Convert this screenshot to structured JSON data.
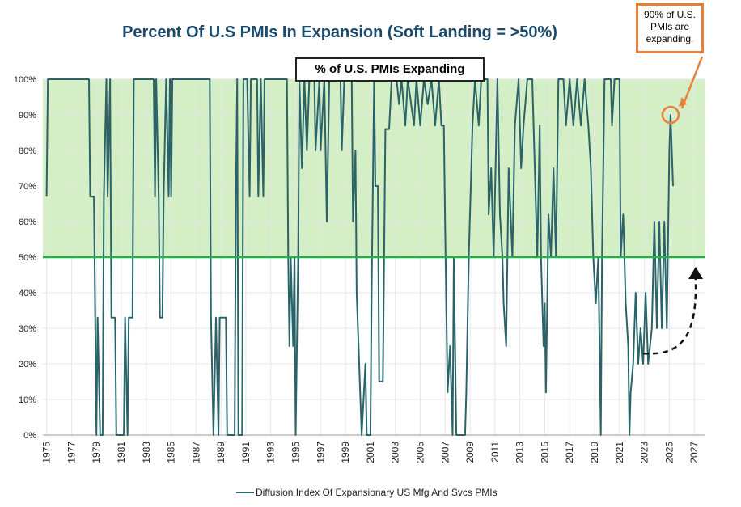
{
  "chart_data": {
    "type": "line",
    "title": "Percent Of U.S PMIs In Expansion (Soft Landing = >50%)",
    "annotations": [
      "% of U.S. PMIs Expanding",
      "90% of U.S. PMIs are expanding."
    ],
    "xlim": [
      1974.7,
      2027.9
    ],
    "xticks": [
      1975,
      1977,
      1979,
      1981,
      1983,
      1985,
      1987,
      1989,
      1991,
      1993,
      1995,
      1997,
      1999,
      2001,
      2003,
      2005,
      2007,
      2009,
      2011,
      2013,
      2015,
      2017,
      2019,
      2021,
      2023,
      2025,
      2027
    ],
    "ylim": [
      0,
      100
    ],
    "yticks": [
      {
        "value": 0,
        "label": "0%"
      },
      {
        "value": 10,
        "label": "10%"
      },
      {
        "value": 20,
        "label": "20%"
      },
      {
        "value": 30,
        "label": "30%"
      },
      {
        "value": 40,
        "label": "40%"
      },
      {
        "value": 50,
        "label": "50%"
      },
      {
        "value": 60,
        "label": "60%"
      },
      {
        "value": 70,
        "label": "70%"
      },
      {
        "value": 80,
        "label": "80%"
      },
      {
        "value": 90,
        "label": "90%"
      },
      {
        "value": 100,
        "label": "100%"
      }
    ],
    "grid": true,
    "threshold": {
      "value": 50,
      "color": "#22b04a",
      "band_color": "#d4efc6"
    },
    "x": [
      1975.0,
      1975.1,
      1978.4,
      1978.5,
      1978.8,
      1978.9,
      1979.0,
      1979.1,
      1979.3,
      1979.5,
      1979.6,
      1979.8,
      1979.9,
      1980.1,
      1980.2,
      1980.5,
      1980.6,
      1981.2,
      1981.3,
      1981.5,
      1981.6,
      1981.9,
      1982.0,
      1983.6,
      1983.7,
      1983.8,
      1984.0,
      1984.1,
      1984.3,
      1984.4,
      1984.6,
      1984.8,
      1984.9,
      1985.0,
      1985.1,
      1988.1,
      1988.2,
      1988.4,
      1988.6,
      1988.8,
      1988.9,
      1989.4,
      1989.5,
      1990.1,
      1990.2,
      1990.3,
      1990.4,
      1990.7,
      1990.8,
      1991.1,
      1991.3,
      1991.4,
      1991.9,
      1992.0,
      1992.2,
      1992.4,
      1992.5,
      1994.3,
      1994.4,
      1994.5,
      1994.6,
      1994.8,
      1994.9,
      1995.0,
      1995.2,
      1995.3,
      1995.5,
      1995.7,
      1995.9,
      1996.1,
      1996.5,
      1996.6,
      1996.9,
      1997.0,
      1997.3,
      1997.5,
      1997.7,
      1998.6,
      1998.7,
      1998.9,
      1999.5,
      1999.6,
      1999.8,
      1999.9,
      2000.1,
      2000.3,
      2000.6,
      2000.7,
      2001.0,
      2001.1,
      2001.3,
      2001.4,
      2001.6,
      2001.7,
      2002.0,
      2002.2,
      2002.5,
      2002.7,
      2003.1,
      2003.3,
      2003.5,
      2003.8,
      2004.0,
      2004.5,
      2004.7,
      2005.0,
      2005.3,
      2005.6,
      2005.9,
      2006.2,
      2006.5,
      2006.7,
      2006.9,
      2007.0,
      2007.2,
      2007.4,
      2007.6,
      2007.7,
      2007.9,
      2008.6,
      2008.7,
      2008.9,
      2009.2,
      2009.4,
      2009.7,
      2009.9,
      2010.4,
      2010.5,
      2010.7,
      2010.9,
      2011.2,
      2011.4,
      2011.6,
      2011.7,
      2011.9,
      2012.1,
      2012.4,
      2012.6,
      2012.9,
      2013.1,
      2013.3,
      2013.6,
      2014.0,
      2014.2,
      2014.4,
      2014.6,
      2014.7,
      2014.9,
      2015.0,
      2015.1,
      2015.3,
      2015.5,
      2015.7,
      2015.9,
      2016.1,
      2016.5,
      2016.7,
      2017.0,
      2017.3,
      2017.6,
      2017.9,
      2018.2,
      2018.5,
      2018.7,
      2018.9,
      2019.1,
      2019.3,
      2019.5,
      2019.6,
      2019.8,
      2020.3,
      2020.4,
      2020.6,
      2021.0,
      2021.1,
      2021.3,
      2021.5,
      2021.7,
      2021.8,
      2021.9,
      2022.1,
      2022.3,
      2022.5,
      2022.7,
      2022.9,
      2023.1,
      2023.3,
      2023.6,
      2023.8,
      2024.0,
      2024.2,
      2024.4,
      2024.6,
      2024.8,
      2025.0,
      2025.1,
      2025.3
    ],
    "series": [
      {
        "name": "Diffusion Index Of Expansionary US Mfg And Svcs PMIs",
        "color": "#2b6468",
        "values": [
          67,
          100,
          100,
          67,
          67,
          33,
          0,
          33,
          0,
          0,
          67,
          100,
          67,
          100,
          33,
          33,
          0,
          0,
          33,
          0,
          33,
          33,
          100,
          100,
          67,
          100,
          67,
          33,
          33,
          67,
          100,
          67,
          100,
          67,
          100,
          100,
          33,
          0,
          33,
          0,
          33,
          33,
          0,
          0,
          67,
          100,
          0,
          0,
          100,
          100,
          67,
          100,
          100,
          67,
          100,
          67,
          100,
          100,
          50,
          25,
          50,
          25,
          50,
          0,
          50,
          100,
          75,
          100,
          80,
          100,
          100,
          80,
          100,
          80,
          100,
          60,
          100,
          100,
          80,
          100,
          100,
          60,
          80,
          40,
          20,
          0,
          20,
          0,
          0,
          40,
          100,
          70,
          70,
          15,
          15,
          86,
          86,
          100,
          100,
          93,
          100,
          87,
          100,
          87,
          100,
          87,
          100,
          93,
          100,
          87,
          100,
          87,
          87,
          60,
          12,
          25,
          0,
          50,
          0,
          0,
          12,
          50,
          87,
          100,
          87,
          100,
          100,
          62,
          75,
          50,
          100,
          62,
          50,
          37,
          25,
          75,
          50,
          87,
          100,
          75,
          87,
          100,
          100,
          75,
          50,
          87,
          50,
          25,
          37,
          12,
          62,
          50,
          75,
          50,
          100,
          100,
          87,
          100,
          87,
          100,
          87,
          100,
          87,
          75,
          50,
          37,
          50,
          0,
          50,
          100,
          100,
          87,
          100,
          100,
          50,
          62,
          37,
          25,
          0,
          12,
          20,
          40,
          20,
          30,
          20,
          40,
          20,
          30,
          60,
          30,
          60,
          30,
          60,
          30,
          80,
          90,
          70
        ]
      }
    ]
  }
}
